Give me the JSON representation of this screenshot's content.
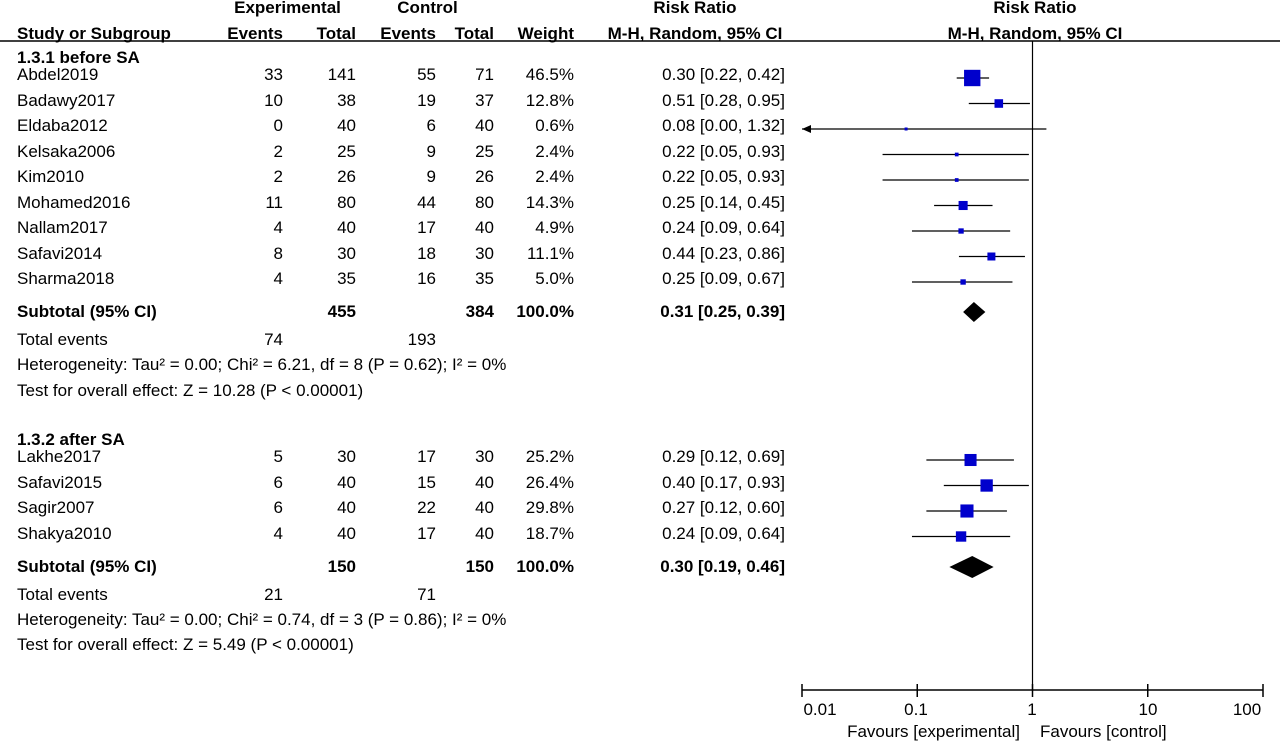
{
  "headers": {
    "study": "Study or Subgroup",
    "experimental": "Experimental",
    "control": "Control",
    "events": "Events",
    "total": "Total",
    "weight": "Weight",
    "rr": "Risk Ratio",
    "method": "M-H, Random, 95% CI"
  },
  "groups": [
    {
      "name": "1.3.1 before SA",
      "rows": [
        {
          "study": "Abdel2019",
          "e_ev": "33",
          "e_tot": "141",
          "c_ev": "55",
          "c_tot": "71",
          "weight": "46.5%",
          "ci_text": "0.30 [0.22, 0.42]"
        },
        {
          "study": "Badawy2017",
          "e_ev": "10",
          "e_tot": "38",
          "c_ev": "19",
          "c_tot": "37",
          "weight": "12.8%",
          "ci_text": "0.51 [0.28, 0.95]"
        },
        {
          "study": "Eldaba2012",
          "e_ev": "0",
          "e_tot": "40",
          "c_ev": "6",
          "c_tot": "40",
          "weight": "0.6%",
          "ci_text": "0.08 [0.00, 1.32]"
        },
        {
          "study": "Kelsaka2006",
          "e_ev": "2",
          "e_tot": "25",
          "c_ev": "9",
          "c_tot": "25",
          "weight": "2.4%",
          "ci_text": "0.22 [0.05, 0.93]"
        },
        {
          "study": "Kim2010",
          "e_ev": "2",
          "e_tot": "26",
          "c_ev": "9",
          "c_tot": "26",
          "weight": "2.4%",
          "ci_text": "0.22 [0.05, 0.93]"
        },
        {
          "study": "Mohamed2016",
          "e_ev": "11",
          "e_tot": "80",
          "c_ev": "44",
          "c_tot": "80",
          "weight": "14.3%",
          "ci_text": "0.25 [0.14, 0.45]"
        },
        {
          "study": "Nallam2017",
          "e_ev": "4",
          "e_tot": "40",
          "c_ev": "17",
          "c_tot": "40",
          "weight": "4.9%",
          "ci_text": "0.24 [0.09, 0.64]"
        },
        {
          "study": "Safavi2014",
          "e_ev": "8",
          "e_tot": "30",
          "c_ev": "18",
          "c_tot": "30",
          "weight": "11.1%",
          "ci_text": "0.44 [0.23, 0.86]"
        },
        {
          "study": "Sharma2018",
          "e_ev": "4",
          "e_tot": "35",
          "c_ev": "16",
          "c_tot": "35",
          "weight": "5.0%",
          "ci_text": "0.25 [0.09, 0.67]"
        }
      ],
      "subtotal": {
        "label": "Subtotal (95% CI)",
        "e_tot": "455",
        "c_tot": "384",
        "weight": "100.0%",
        "ci_text": "0.31 [0.25, 0.39]"
      },
      "total_events": {
        "label": "Total events",
        "e": "74",
        "c": "193"
      },
      "heterogeneity": "Heterogeneity: Tau² = 0.00; Chi² = 6.21, df = 8 (P = 0.62); I² = 0%",
      "overall": "Test for overall effect: Z = 10.28 (P < 0.00001)"
    },
    {
      "name": "1.3.2 after SA",
      "rows": [
        {
          "study": "Lakhe2017",
          "e_ev": "5",
          "e_tot": "30",
          "c_ev": "17",
          "c_tot": "30",
          "weight": "25.2%",
          "ci_text": "0.29 [0.12, 0.69]"
        },
        {
          "study": "Safavi2015",
          "e_ev": "6",
          "e_tot": "40",
          "c_ev": "15",
          "c_tot": "40",
          "weight": "26.4%",
          "ci_text": "0.40 [0.17, 0.93]"
        },
        {
          "study": "Sagir2007",
          "e_ev": "6",
          "e_tot": "40",
          "c_ev": "22",
          "c_tot": "40",
          "weight": "29.8%",
          "ci_text": "0.27 [0.12, 0.60]"
        },
        {
          "study": "Shakya2010",
          "e_ev": "4",
          "e_tot": "40",
          "c_ev": "17",
          "c_tot": "40",
          "weight": "18.7%",
          "ci_text": "0.24 [0.09, 0.64]"
        }
      ],
      "subtotal": {
        "label": "Subtotal (95% CI)",
        "e_tot": "150",
        "c_tot": "150",
        "weight": "100.0%",
        "ci_text": "0.30 [0.19, 0.46]"
      },
      "total_events": {
        "label": "Total events",
        "e": "21",
        "c": "71"
      },
      "heterogeneity": "Heterogeneity: Tau² = 0.00; Chi² = 0.74, df = 3 (P = 0.86); I² = 0%",
      "overall": "Test for overall effect: Z = 5.49 (P < 0.00001)"
    }
  ],
  "axis": {
    "ticks": [
      "0.01",
      "0.1",
      "1",
      "10",
      "100"
    ],
    "favours_left": "Favours [experimental]",
    "favours_right": "Favours [control]"
  },
  "colors": {
    "study_marker": "#0000cc",
    "diamond": "#000000",
    "line": "#000000"
  },
  "chart_data": {
    "type": "forest",
    "scale": "log",
    "xlim": [
      0.01,
      100
    ],
    "xticks": [
      0.01,
      0.1,
      1,
      10,
      100
    ],
    "reference_line": 1,
    "x_label_left": "Favours [experimental]",
    "x_label_right": "Favours [control]",
    "groups": [
      {
        "name": "1.3.1 before SA",
        "studies": [
          {
            "study": "Abdel2019",
            "rr": 0.3,
            "lo": 0.22,
            "hi": 0.42,
            "weight": 46.5
          },
          {
            "study": "Badawy2017",
            "rr": 0.51,
            "lo": 0.28,
            "hi": 0.95,
            "weight": 12.8
          },
          {
            "study": "Eldaba2012",
            "rr": 0.08,
            "lo": 0.0,
            "hi": 1.32,
            "weight": 0.6,
            "lower_truncated": true
          },
          {
            "study": "Kelsaka2006",
            "rr": 0.22,
            "lo": 0.05,
            "hi": 0.93,
            "weight": 2.4
          },
          {
            "study": "Kim2010",
            "rr": 0.22,
            "lo": 0.05,
            "hi": 0.93,
            "weight": 2.4
          },
          {
            "study": "Mohamed2016",
            "rr": 0.25,
            "lo": 0.14,
            "hi": 0.45,
            "weight": 14.3
          },
          {
            "study": "Nallam2017",
            "rr": 0.24,
            "lo": 0.09,
            "hi": 0.64,
            "weight": 4.9
          },
          {
            "study": "Safavi2014",
            "rr": 0.44,
            "lo": 0.23,
            "hi": 0.86,
            "weight": 11.1
          },
          {
            "study": "Sharma2018",
            "rr": 0.25,
            "lo": 0.09,
            "hi": 0.67,
            "weight": 5.0
          }
        ],
        "subtotal": {
          "rr": 0.31,
          "lo": 0.25,
          "hi": 0.39
        }
      },
      {
        "name": "1.3.2 after SA",
        "studies": [
          {
            "study": "Lakhe2017",
            "rr": 0.29,
            "lo": 0.12,
            "hi": 0.69,
            "weight": 25.2
          },
          {
            "study": "Safavi2015",
            "rr": 0.4,
            "lo": 0.17,
            "hi": 0.93,
            "weight": 26.4
          },
          {
            "study": "Sagir2007",
            "rr": 0.27,
            "lo": 0.12,
            "hi": 0.6,
            "weight": 29.8
          },
          {
            "study": "Shakya2010",
            "rr": 0.24,
            "lo": 0.09,
            "hi": 0.64,
            "weight": 18.7
          }
        ],
        "subtotal": {
          "rr": 0.3,
          "lo": 0.19,
          "hi": 0.46
        }
      }
    ]
  }
}
